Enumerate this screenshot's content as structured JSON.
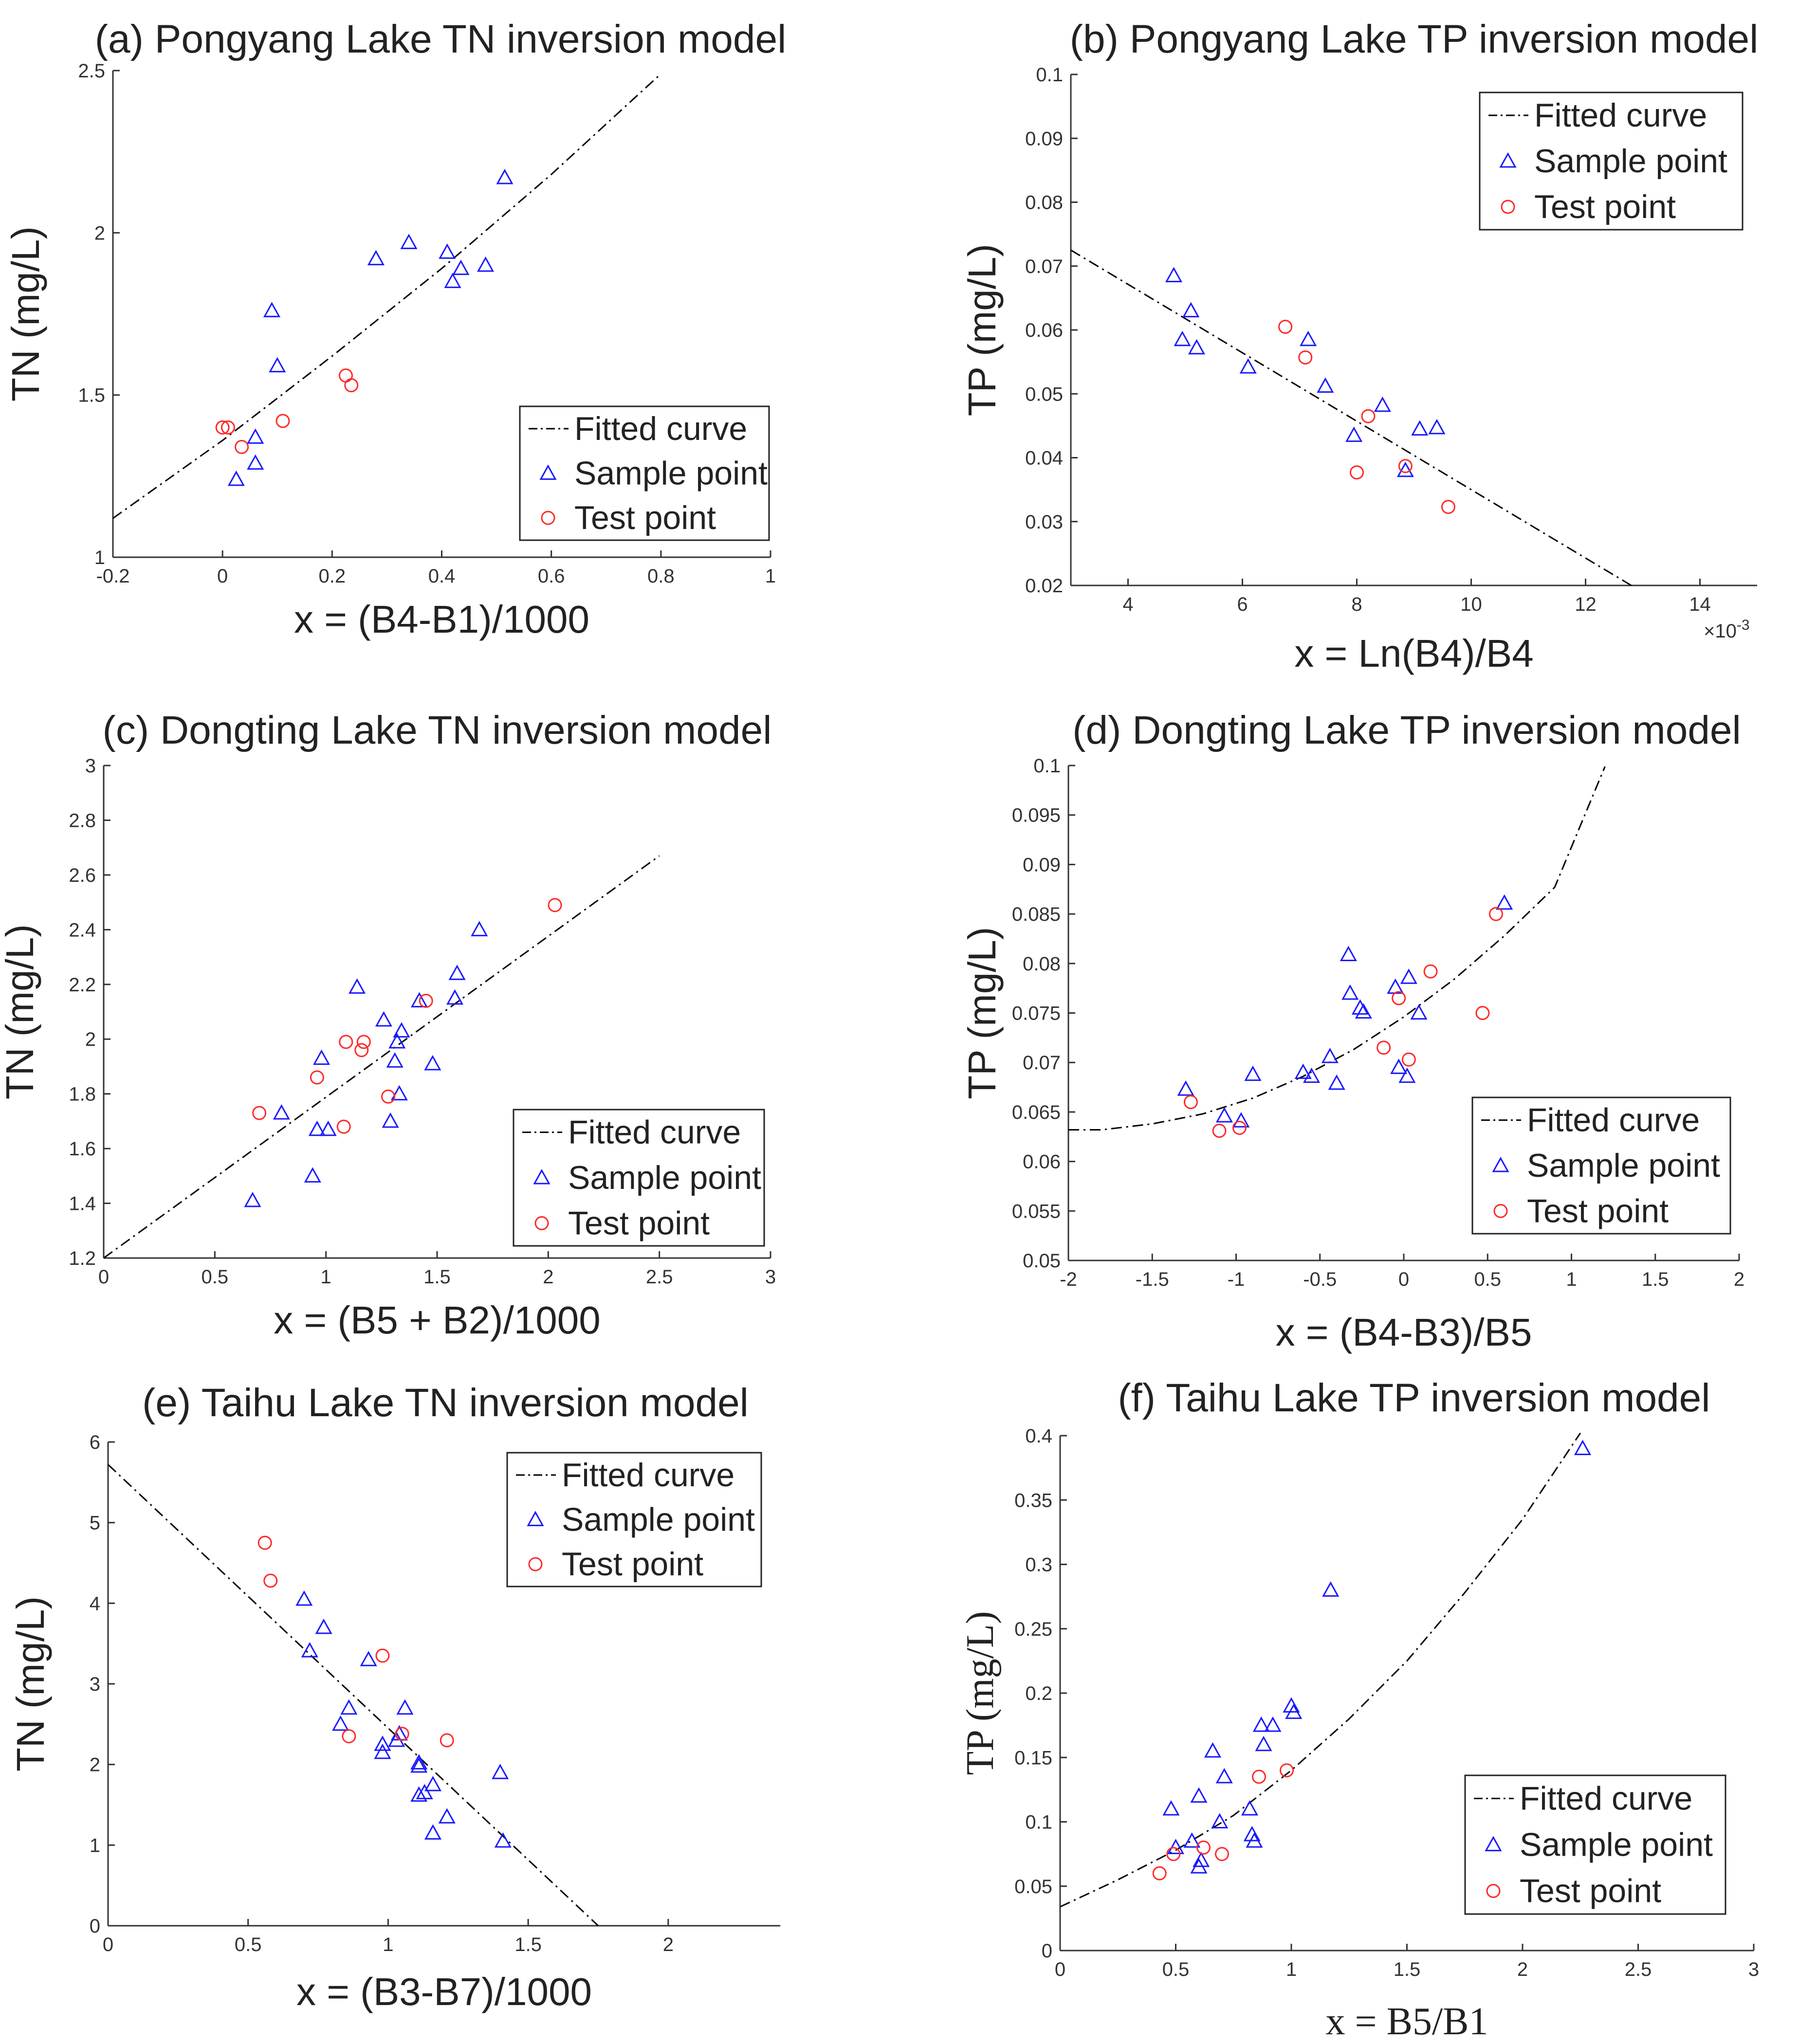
{
  "figure": {
    "background": "#ffffff",
    "fit_color": "#000000",
    "sample_color": "#1a1aff",
    "test_color": "#ff2a2a"
  },
  "chart_data": [
    {
      "id": "a",
      "type": "scatter",
      "title": "(a) Pongyang Lake TN inversion model",
      "xlabel": "x = (B4-B1)/1000",
      "ylabel": "TN (mg/L)",
      "xlim": [
        -0.2,
        1
      ],
      "ylim": [
        1,
        2.5
      ],
      "xticks": [
        "-0.2",
        "0",
        "0.2",
        "0.4",
        "0.6",
        "0.8",
        "1"
      ],
      "yticks": [
        "1",
        "1.5",
        "2",
        "2.5"
      ],
      "legend": {
        "position": "bottom-right",
        "entries": [
          "Fitted curve",
          "Sample point",
          "Test point"
        ]
      },
      "fit": {
        "x": [
          -0.2,
          0,
          0.2,
          0.4,
          0.6,
          0.8
        ],
        "y": [
          1.12,
          1.36,
          1.62,
          1.89,
          2.18,
          2.49
        ]
      },
      "sample": {
        "x": [
          0.09,
          0.1,
          0.06,
          0.06,
          0.025,
          0.28,
          0.34,
          0.41,
          0.42,
          0.435,
          0.48,
          0.515
        ],
        "y": [
          1.76,
          1.59,
          1.37,
          1.29,
          1.24,
          1.92,
          1.97,
          1.94,
          1.85,
          1.89,
          1.9,
          2.17
        ]
      },
      "test": {
        "x": [
          0.0,
          0.01,
          0.035,
          0.11,
          0.225,
          0.235
        ],
        "y": [
          1.4,
          1.4,
          1.34,
          1.42,
          1.56,
          1.53
        ]
      }
    },
    {
      "id": "b",
      "type": "scatter",
      "title": "(b) Pongyang Lake TP inversion model",
      "xlabel": "x = Ln(B4)/B4",
      "ylabel": "TP (mg/L)",
      "xlim": [
        3,
        15
      ],
      "ylim": [
        0.02,
        0.1
      ],
      "xticks": [
        "4",
        "6",
        "8",
        "10",
        "12",
        "14"
      ],
      "yticks": [
        "0.02",
        "0.03",
        "0.04",
        "0.05",
        "0.06",
        "0.07",
        "0.08",
        "0.09",
        "0.1"
      ],
      "xexp": "×10",
      "xexp_sup": "-3",
      "legend": {
        "position": "top-right",
        "entries": [
          "Fitted curve",
          "Sample point",
          "Test point"
        ]
      },
      "fit": {
        "x": [
          3,
          12.8
        ],
        "y": [
          0.0725,
          0.02
        ]
      },
      "sample": {
        "x": [
          4.8,
          5.1,
          4.95,
          5.2,
          6.1,
          7.15,
          7.45,
          7.95,
          8.45,
          8.85,
          9.1,
          9.4
        ],
        "y": [
          0.0685,
          0.063,
          0.0585,
          0.0572,
          0.0542,
          0.0585,
          0.0512,
          0.0435,
          0.0482,
          0.038,
          0.0445,
          0.0447
        ]
      },
      "test": {
        "x": [
          6.75,
          7.1,
          8.0,
          8.2,
          8.85,
          9.6
        ],
        "y": [
          0.0605,
          0.0557,
          0.0377,
          0.0465,
          0.0387,
          0.0323
        ]
      }
    },
    {
      "id": "c",
      "type": "scatter",
      "title": "(c) Dongting Lake TN inversion model",
      "xlabel": "x = (B5 + B2)/1000",
      "ylabel": "TN (mg/L)",
      "xlim": [
        0,
        3
      ],
      "ylim": [
        1.2,
        3
      ],
      "xticks": [
        "0",
        "0.5",
        "1",
        "1.5",
        "2",
        "2.5",
        "3"
      ],
      "yticks": [
        "1.2",
        "1.4",
        "1.6",
        "1.8",
        "2",
        "2.2",
        "2.4",
        "2.6",
        "2.8",
        "3"
      ],
      "legend": {
        "position": "bottom-right",
        "entries": [
          "Fitted curve",
          "Sample point",
          "Test point"
        ]
      },
      "fit": {
        "x": [
          0,
          2.5
        ],
        "y": [
          1.2,
          2.67
        ]
      },
      "sample": {
        "x": [
          0.67,
          0.8,
          0.94,
          0.96,
          0.98,
          1.01,
          1.14,
          1.26,
          1.29,
          1.31,
          1.32,
          1.33,
          1.34,
          1.42,
          1.48,
          1.58,
          1.59,
          1.69
        ],
        "y": [
          1.41,
          1.73,
          1.5,
          1.67,
          1.93,
          1.67,
          2.19,
          2.07,
          1.7,
          1.92,
          1.99,
          1.8,
          2.03,
          2.14,
          1.91,
          2.15,
          2.24,
          2.4
        ]
      },
      "test": {
        "x": [
          0.7,
          0.96,
          1.08,
          1.09,
          1.16,
          1.17,
          1.28,
          1.45,
          2.03
        ],
        "y": [
          1.73,
          1.86,
          1.68,
          1.99,
          1.96,
          1.99,
          1.79,
          2.14,
          2.49
        ]
      }
    },
    {
      "id": "d",
      "type": "scatter",
      "title": "(d) Dongting Lake TP inversion model",
      "xlabel": "x = (B4-B3)/B5",
      "ylabel": "TP (mg/L)",
      "xlim": [
        -2,
        2
      ],
      "ylim": [
        0.05,
        0.1
      ],
      "xticks": [
        "-2",
        "-1.5",
        "-1",
        "-0.5",
        "0",
        "0.5",
        "1",
        "1.5",
        "2"
      ],
      "yticks": [
        "0.05",
        "0.055",
        "0.06",
        "0.065",
        "0.07",
        "0.075",
        "0.08",
        "0.085",
        "0.09",
        "0.095",
        "0.1"
      ],
      "legend": {
        "position": "bottom-right",
        "entries": [
          "Fitted curve",
          "Sample point",
          "Test point"
        ]
      },
      "fit": {
        "x": [
          -2,
          -1.8,
          -1.5,
          -1.2,
          -0.9,
          -0.6,
          -0.3,
          0,
          0.3,
          0.6,
          0.9,
          1.2
        ],
        "y": [
          0.0632,
          0.0632,
          0.0638,
          0.0648,
          0.0664,
          0.0686,
          0.0713,
          0.0746,
          0.0784,
          0.0828,
          0.0877,
          0.0999
        ]
      },
      "sample": {
        "x": [
          -1.3,
          -1.07,
          -0.97,
          -0.9,
          -0.6,
          -0.55,
          -0.44,
          -0.4,
          -0.33,
          -0.32,
          -0.26,
          -0.24,
          -0.05,
          -0.03,
          0.02,
          0.03,
          0.09,
          0.6
        ],
        "y": [
          0.0673,
          0.0646,
          0.0641,
          0.0688,
          0.069,
          0.0686,
          0.0706,
          0.0679,
          0.0809,
          0.077,
          0.0755,
          0.0751,
          0.0776,
          0.0695,
          0.0686,
          0.0786,
          0.075,
          0.0861
        ]
      },
      "test": {
        "x": [
          -1.27,
          -1.1,
          -0.98,
          -0.12,
          -0.03,
          0.03,
          0.16,
          0.47,
          0.55
        ],
        "y": [
          0.066,
          0.0631,
          0.0634,
          0.0715,
          0.0765,
          0.0703,
          0.0792,
          0.075,
          0.085
        ]
      }
    },
    {
      "id": "e",
      "type": "scatter",
      "title": "(e) Taihu Lake TN inversion model",
      "xlabel": "x = (B3-B7)/1000",
      "ylabel": "TN (mg/L)",
      "xlim": [
        0,
        2.4
      ],
      "ylim": [
        0,
        6
      ],
      "xticks": [
        "0",
        "0.5",
        "1",
        "1.5",
        "2"
      ],
      "yticks": [
        "0",
        "1",
        "2",
        "3",
        "4",
        "5",
        "6"
      ],
      "legend": {
        "position": "top-right",
        "entries": [
          "Fitted curve",
          "Sample point",
          "Test point"
        ]
      },
      "fit": {
        "x": [
          0,
          1.75
        ],
        "y": [
          5.72,
          0
        ]
      },
      "sample": {
        "x": [
          0.7,
          0.72,
          0.77,
          0.83,
          0.86,
          0.93,
          0.98,
          0.98,
          1.03,
          1.04,
          1.06,
          1.11,
          1.11,
          1.11,
          1.13,
          1.16,
          1.16,
          1.21,
          1.4,
          1.41
        ],
        "y": [
          4.05,
          3.41,
          3.7,
          2.5,
          2.7,
          3.3,
          2.25,
          2.15,
          2.3,
          2.38,
          2.7,
          2.02,
          1.98,
          1.62,
          1.65,
          1.75,
          1.15,
          1.35,
          1.9,
          1.05
        ]
      },
      "test": {
        "x": [
          0.56,
          0.58,
          0.86,
          0.98,
          1.05,
          1.21
        ],
        "y": [
          4.75,
          4.28,
          2.35,
          3.35,
          2.38,
          2.3
        ]
      }
    },
    {
      "id": "f",
      "type": "scatter",
      "title": "(f) Taihu Lake TP inversion model",
      "xlabel": "x = B5/B1",
      "ylabel": "TP (mg/L)",
      "serif_labels": true,
      "xlim": [
        0,
        3
      ],
      "ylim": [
        0,
        0.4
      ],
      "xticks": [
        "0",
        "0.5",
        "1",
        "1.5",
        "2",
        "2.5",
        "3"
      ],
      "yticks": [
        "0",
        "0.05",
        "0.1",
        "0.15",
        "0.2",
        "0.25",
        "0.3",
        "0.35",
        "0.4"
      ],
      "legend": {
        "position": "bottom-right",
        "entries": [
          "Fitted curve",
          "Sample point",
          "Test point"
        ]
      },
      "fit": {
        "x": [
          0,
          0.25,
          0.5,
          0.75,
          1,
          1.25,
          1.5,
          1.75,
          2,
          2.25
        ],
        "y": [
          0.034,
          0.055,
          0.078,
          0.105,
          0.14,
          0.18,
          0.225,
          0.278,
          0.335,
          0.402
        ]
      },
      "sample": {
        "x": [
          0.48,
          0.5,
          0.57,
          0.6,
          0.61,
          0.6,
          0.66,
          0.69,
          0.71,
          0.82,
          0.83,
          0.84,
          0.87,
          0.88,
          0.92,
          1.0,
          1.01,
          1.17,
          2.26
        ],
        "y": [
          0.11,
          0.08,
          0.085,
          0.12,
          0.07,
          0.065,
          0.155,
          0.1,
          0.135,
          0.11,
          0.09,
          0.085,
          0.175,
          0.16,
          0.175,
          0.19,
          0.185,
          0.28,
          0.39
        ]
      },
      "test": {
        "x": [
          0.43,
          0.49,
          0.62,
          0.7,
          0.86,
          0.98
        ],
        "y": [
          0.06,
          0.075,
          0.08,
          0.075,
          0.135,
          0.14
        ]
      }
    }
  ]
}
